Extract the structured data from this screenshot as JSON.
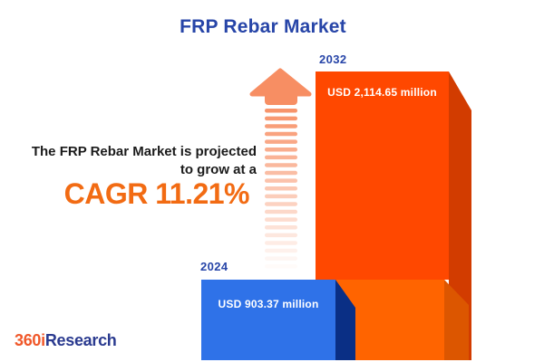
{
  "title": "FRP Rebar Market",
  "annotation": {
    "line1": "The FRP Rebar Market is projected",
    "line2": "to grow at a",
    "cagr_label": "CAGR 11.21%"
  },
  "bars": {
    "y2024": {
      "year": "2024",
      "value_label": "USD 903.37 million"
    },
    "y2032": {
      "year": "2032",
      "value_label": "USD 2,114.65 million"
    }
  },
  "logo": {
    "part1": "360i",
    "part2": "Research"
  },
  "colors": {
    "title_blue": "#2745A8",
    "bar_2032_face": "#FF4800",
    "bar_2032_side": "#D23C00",
    "bar_2032_band_face": "#FF6400",
    "bar_2032_band_side": "#DC5600",
    "bar_2024_face": "#2F72E8",
    "bar_2024_side": "#0A2F85",
    "cagr_orange": "#F26B13",
    "arrow_salmon": "#F78E63",
    "text_dark": "#1B1B1B",
    "value_text": "#FFFFFF",
    "logo_orange": "#F0582A",
    "logo_blue": "#2A3A8F"
  },
  "chart_data": {
    "type": "bar",
    "orientation": "column",
    "categories": [
      "2024",
      "2032"
    ],
    "values": [
      903.37,
      2114.65
    ],
    "unit": "USD million",
    "value_labels": [
      "USD 903.37 million",
      "USD 2,114.65 million"
    ],
    "title": "FRP Rebar Market",
    "annotation": "The FRP Rebar Market is projected to grow at a CAGR 11.21%",
    "cagr_percent": 11.21,
    "legend": false,
    "grid": false,
    "series_colors": {
      "2024": "#2F72E8",
      "2032": "#FF4800"
    }
  }
}
